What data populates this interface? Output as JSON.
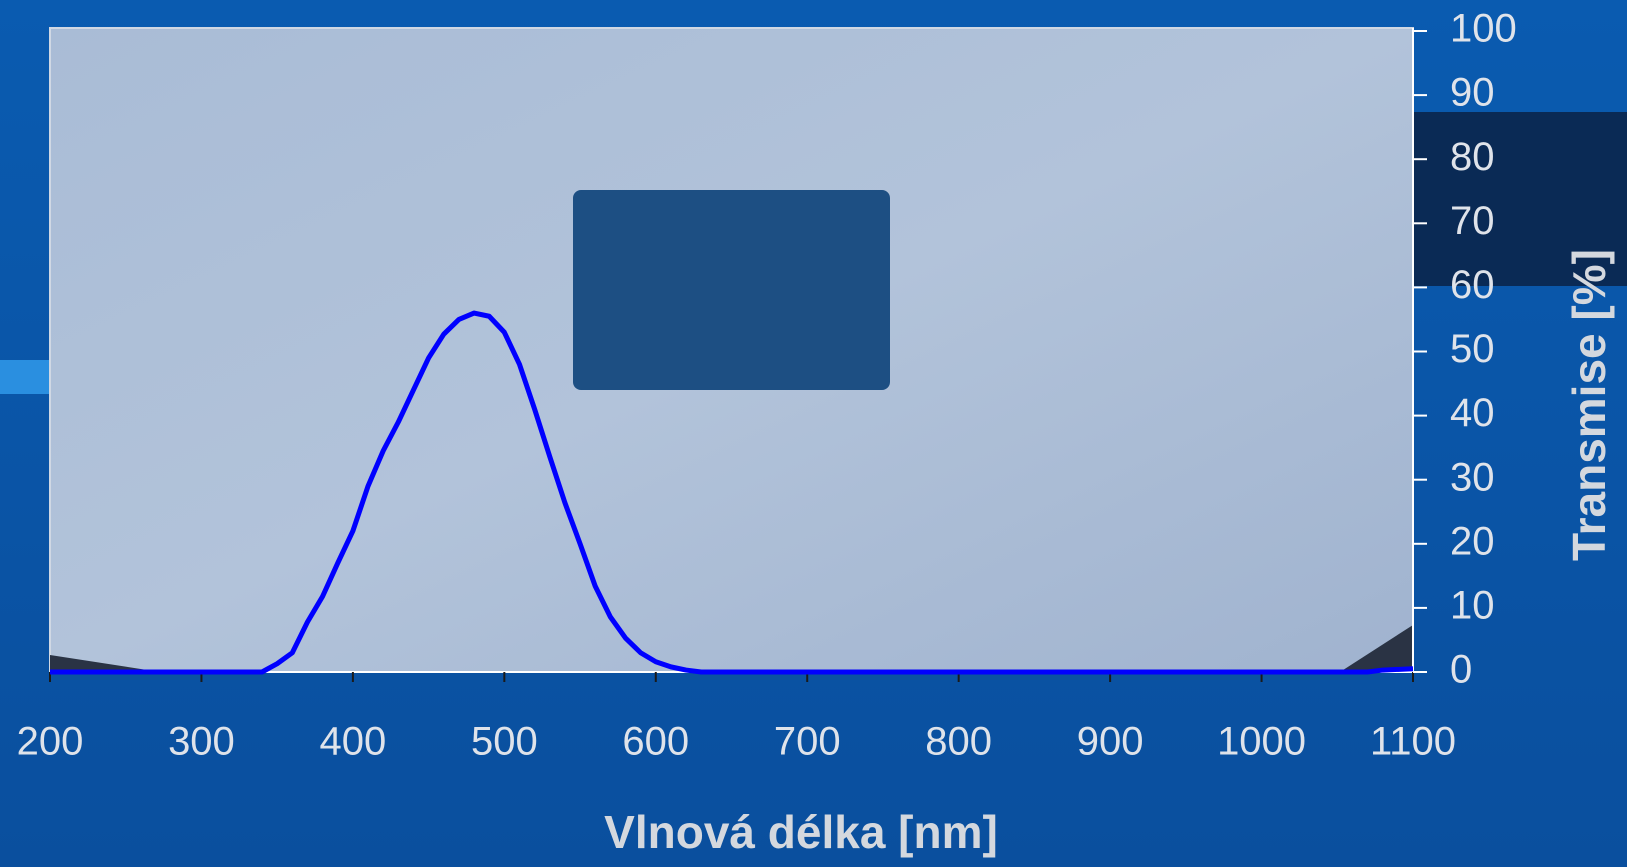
{
  "chart_data": {
    "type": "line",
    "x_label": "Vlnová délka [nm]",
    "y_label": "Transmise [%]",
    "x": [
      200,
      340,
      350,
      360,
      370,
      380,
      390,
      400,
      410,
      420,
      430,
      440,
      450,
      460,
      470,
      480,
      490,
      500,
      510,
      520,
      530,
      540,
      550,
      560,
      570,
      580,
      590,
      600,
      610,
      620,
      630,
      700,
      800,
      900,
      1000,
      1070,
      1080,
      1100
    ],
    "series": [
      {
        "color": "#0000ff",
        "values": [
          0,
          0,
          1.3,
          3,
          7.8,
          11.8,
          17,
          22,
          29,
          34.5,
          39,
          44,
          49,
          52.7,
          55,
          56,
          55.5,
          53,
          48,
          41,
          33.6,
          26.4,
          20,
          13.4,
          8.6,
          5.3,
          3,
          1.6,
          0.8,
          0.3,
          0,
          0,
          0,
          0,
          0,
          0,
          0.3,
          0.5
        ]
      }
    ],
    "xlim": [
      200,
      1100
    ],
    "xticks": [
      200,
      300,
      400,
      500,
      600,
      700,
      800,
      900,
      1000,
      1100
    ],
    "ylim": [
      0,
      100
    ],
    "yticks": [
      0,
      10,
      20,
      30,
      40,
      50,
      60,
      70,
      80,
      90,
      100
    ]
  }
}
